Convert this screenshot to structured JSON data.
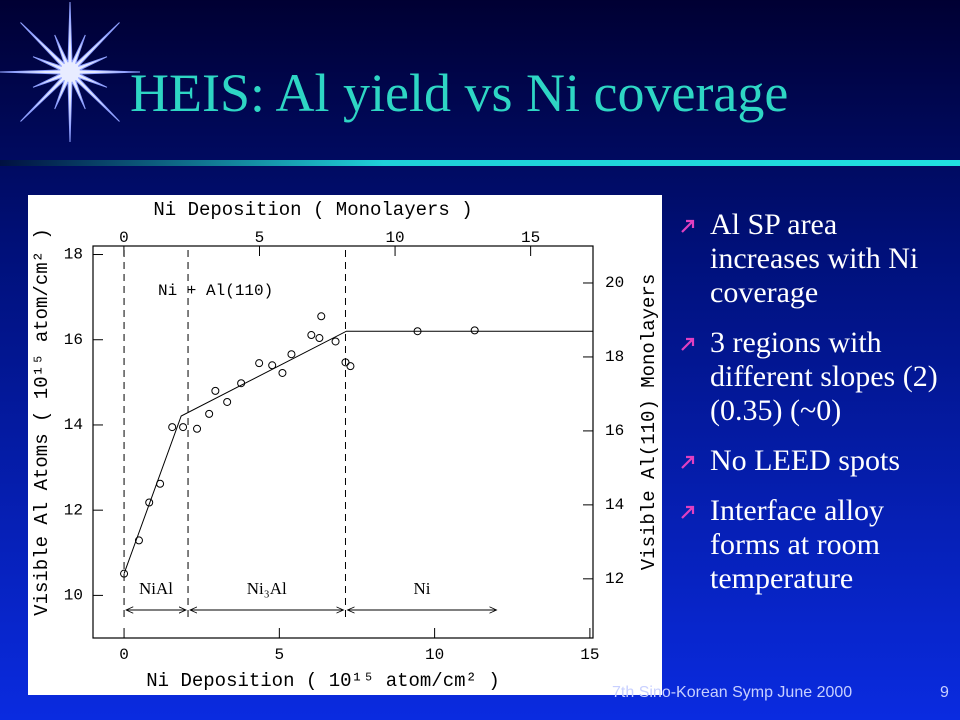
{
  "slide": {
    "title": "HEIS: Al yield vs Ni coverage",
    "bullets": [
      "Al SP area increases with Ni coverage",
      "3 regions with different slopes (2) (0.35) (~0)",
      "No LEED spots",
      "Interface alloy forms at room temperature"
    ],
    "footer": "7th Sino-Korean Symp June 2000",
    "page_number": "9"
  },
  "chart_data": {
    "type": "scatter",
    "annotation": "Ni + Al(110)",
    "x_label": "Ni Deposition ( 10¹⁵ atom/cm² )",
    "x2_label": "Ni Deposition ( Monolayers )",
    "y_label": "Visible Al Atoms ( 10¹⁵ atom/cm² )",
    "y2_label": "Visible Al(110) Monolayers",
    "xlim": [
      -1,
      15.1
    ],
    "xticks": [
      0,
      5,
      10,
      15
    ],
    "x2lim": [
      -1.14,
      17.3
    ],
    "x2ticks": [
      0,
      5,
      10,
      15
    ],
    "ylim": [
      9,
      18.2
    ],
    "yticks": [
      10,
      12,
      14,
      16,
      18
    ],
    "y2lim": [
      10.4,
      21.0
    ],
    "y2ticks": [
      12,
      14,
      16,
      18,
      20
    ],
    "color": "#000000",
    "x": [
      0,
      0.48,
      0.81,
      1.16,
      1.55,
      1.9,
      2.35,
      2.74,
      2.94,
      3.32,
      3.77,
      4.35,
      4.77,
      5.1,
      5.39,
      6.03,
      6.29,
      6.35,
      6.81,
      7.13,
      7.29,
      9.45,
      11.29
    ],
    "values": [
      10.51,
      11.29,
      12.18,
      12.62,
      13.95,
      13.95,
      13.91,
      14.26,
      14.8,
      14.54,
      14.98,
      15.45,
      15.4,
      15.22,
      15.66,
      16.11,
      16.04,
      16.55,
      15.96,
      15.47,
      15.38,
      16.2,
      16.22
    ],
    "fit_line": {
      "x": [
        0,
        1.84,
        7.16,
        15.1
      ],
      "y": [
        10.51,
        14.21,
        16.2,
        16.2
      ]
    },
    "regions": [
      {
        "label": "NiAl",
        "start": 0,
        "end": 2.06
      },
      {
        "label": "Ni₃Al",
        "start": 2.06,
        "end": 7.13
      },
      {
        "label": "Ni",
        "start": 7.13,
        "end": 12.06
      }
    ]
  }
}
